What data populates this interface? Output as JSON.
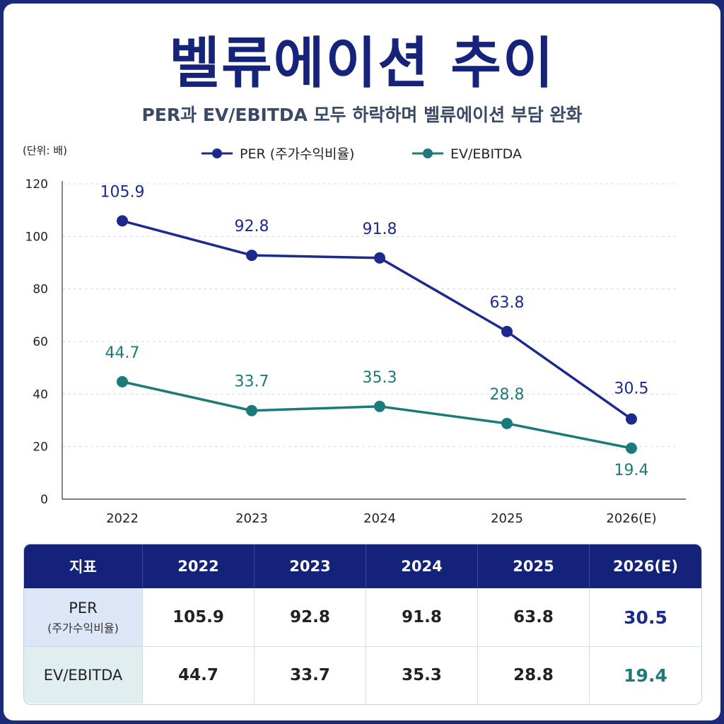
{
  "title": "벨류에이션 추이",
  "subtitle": "PER과 EV/EBITDA 모두 하락하며 벨류에이션 부담 완화",
  "unit_label": "(단위: 배)",
  "colors": {
    "per": "#1c2a8e",
    "ev": "#1d7a7a",
    "header_bg": "#14227a"
  },
  "chart_data": {
    "type": "line",
    "categories": [
      "2022",
      "2023",
      "2024",
      "2025",
      "2026(E)"
    ],
    "ylim": [
      0,
      120
    ],
    "yticks": [
      0,
      20,
      40,
      60,
      80,
      100,
      120
    ],
    "grid": true,
    "legend_position": "top",
    "series": [
      {
        "name": "PER (주가수익비율)",
        "values": [
          105.9,
          92.8,
          91.8,
          63.8,
          30.5
        ],
        "labels": [
          "105.9",
          "92.8",
          "91.8",
          "63.8",
          "30.5"
        ]
      },
      {
        "name": "EV/EBITDA",
        "values": [
          44.7,
          33.7,
          35.3,
          28.8,
          19.4
        ],
        "labels": [
          "44.7",
          "33.7",
          "35.3",
          "28.8",
          "19.4"
        ]
      }
    ]
  },
  "table": {
    "header": [
      "지표",
      "2022",
      "2023",
      "2024",
      "2025",
      "2026(E)"
    ],
    "rows": [
      {
        "label": "PER",
        "sublabel": "(주가수익비율)",
        "values": [
          "105.9",
          "92.8",
          "91.8",
          "63.8",
          "30.5"
        ]
      },
      {
        "label": "EV/EBITDA",
        "sublabel": "",
        "values": [
          "44.7",
          "33.7",
          "35.3",
          "28.8",
          "19.4"
        ]
      }
    ]
  }
}
